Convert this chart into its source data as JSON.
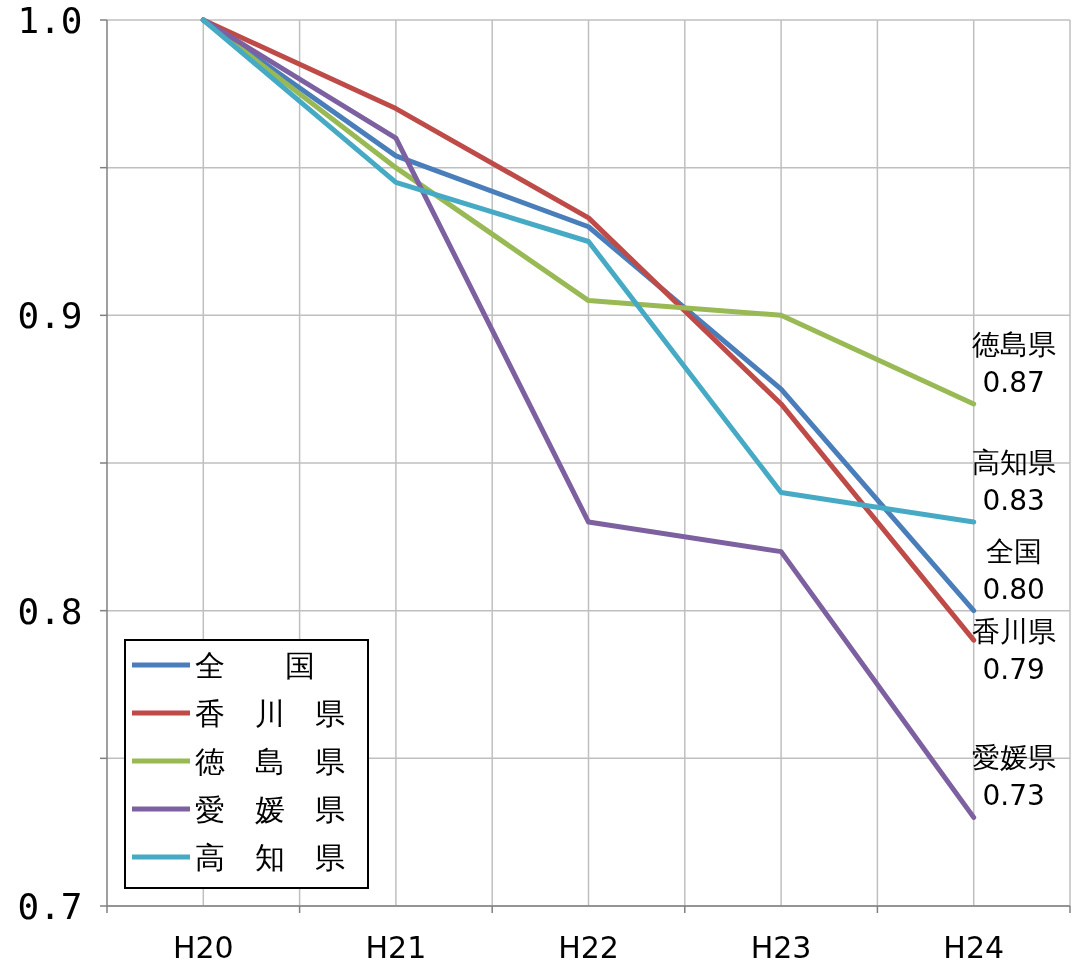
{
  "chart_data": {
    "type": "line",
    "categories": [
      "H20",
      "H21",
      "H22",
      "H23",
      "H24"
    ],
    "series": [
      {
        "name": "全　　国",
        "color": "#4a7ebb",
        "values": [
          1.0,
          0.954,
          0.93,
          0.875,
          0.8
        ]
      },
      {
        "name": "香　川　県",
        "color": "#be4b48",
        "values": [
          1.0,
          0.97,
          0.933,
          0.87,
          0.79
        ]
      },
      {
        "name": "徳　島　県",
        "color": "#98b954",
        "values": [
          1.0,
          0.95,
          0.905,
          0.9,
          0.87
        ]
      },
      {
        "name": "愛　媛　県",
        "color": "#7d60a0",
        "values": [
          1.0,
          0.96,
          0.83,
          0.82,
          0.73
        ]
      },
      {
        "name": "高　知　県",
        "color": "#46aac5",
        "values": [
          1.0,
          0.945,
          0.925,
          0.84,
          0.83
        ]
      }
    ],
    "ylim": [
      0.7,
      1.0
    ],
    "yticks": [
      {
        "value": 0.7,
        "label": "0.7"
      },
      {
        "value": 0.75,
        "label": null
      },
      {
        "value": 0.8,
        "label": "0.8"
      },
      {
        "value": 0.85,
        "label": null
      },
      {
        "value": 0.9,
        "label": "0.9"
      },
      {
        "value": 0.95,
        "label": null
      },
      {
        "value": 1.0,
        "label": "1.0"
      }
    ],
    "grid": true,
    "legend": "bottom left",
    "marker": "none",
    "line_style": "solid",
    "annotations": [
      {
        "text": "徳島県\n0.87",
        "x": "H24",
        "y": 0.87
      },
      {
        "text": "高知県\n0.83",
        "x": "H24",
        "y": 0.83
      },
      {
        "text": "全国\n0.80",
        "x": "H24",
        "y": 0.8
      },
      {
        "text": "香川県\n0.79",
        "x": "H24",
        "y": 0.79
      },
      {
        "text": "愛媛県\n0.73",
        "x": "H24",
        "y": 0.73
      }
    ]
  }
}
